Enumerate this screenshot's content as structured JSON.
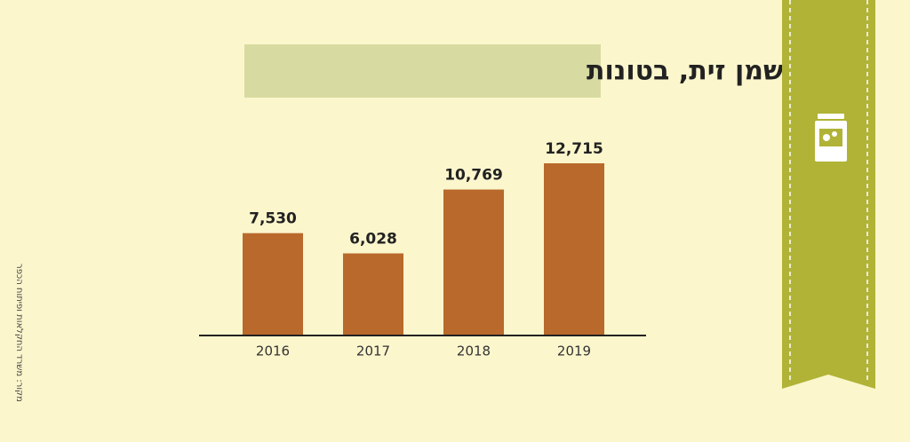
{
  "chart_data": {
    "type": "bar",
    "title": "ייבוא שמן זית, בטונות",
    "source": "מקור: משרד החקלאות ופיתוח הכפר",
    "categories": [
      "2016",
      "2017",
      "2018",
      "2019"
    ],
    "values": [
      7530,
      6028,
      10769,
      12715
    ],
    "value_labels": [
      "7,530",
      "6,028",
      "10,769",
      "12,715"
    ],
    "color": "#b8692b"
  }
}
